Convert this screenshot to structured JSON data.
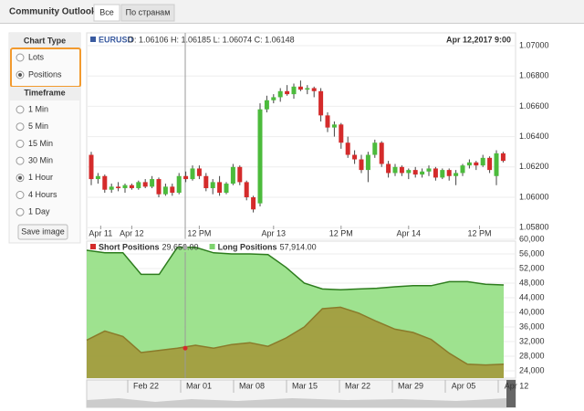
{
  "header": {
    "title": "Community Outlook",
    "tabs": [
      {
        "label": "Все",
        "active": true
      },
      {
        "label": "По странам",
        "active": false
      }
    ]
  },
  "sidebar": {
    "chart_type": {
      "title": "Chart Type",
      "options": [
        {
          "label": "Lots",
          "checked": false
        },
        {
          "label": "Positions",
          "checked": true
        }
      ]
    },
    "timeframe": {
      "title": "Timeframe",
      "options": [
        {
          "label": "1 Min",
          "checked": false
        },
        {
          "label": "5 Min",
          "checked": false
        },
        {
          "label": "15 Min",
          "checked": false
        },
        {
          "label": "30 Min",
          "checked": false
        },
        {
          "label": "1 Hour",
          "checked": true
        },
        {
          "label": "4 Hours",
          "checked": false
        },
        {
          "label": "1 Day",
          "checked": false
        }
      ]
    },
    "button": "Save image"
  },
  "price_chart": {
    "type": "candlestick",
    "symbol": "EURUSD",
    "ohlc": "O: 1.06106 H: 1.06185 L: 1.06074 C: 1.06148",
    "date": "Apr 12,2017 9:00",
    "up_color": "#4cbb3c",
    "down_color": "#d42b2b",
    "ylim": [
      1.0576,
      1.0708
    ],
    "yticks": [
      {
        "value": 1.058,
        "label": "1.05800"
      },
      {
        "value": 1.06,
        "label": "1.06000"
      },
      {
        "value": 1.062,
        "label": "1.06200"
      },
      {
        "value": 1.064,
        "label": "1.06400"
      },
      {
        "value": 1.066,
        "label": "1.06600"
      },
      {
        "value": 1.068,
        "label": "1.06800"
      },
      {
        "value": 1.07,
        "label": "1.07000"
      }
    ],
    "xticks": [
      {
        "value": 1.4,
        "label": "Apr 11"
      },
      {
        "value": 6,
        "label": "Apr 12"
      },
      {
        "value": 16,
        "label": "12 PM"
      },
      {
        "value": 27,
        "label": "Apr 13"
      },
      {
        "value": 37,
        "label": "12 PM"
      },
      {
        "value": 47,
        "label": "Apr 14"
      },
      {
        "value": 57.5,
        "label": "12 PM"
      }
    ],
    "open": [
      1.0628,
      1.0612,
      1.0614,
      1.0605,
      1.0607,
      1.0606,
      1.0608,
      1.0606,
      1.061,
      1.0607,
      1.0612,
      1.0602,
      1.0607,
      1.0603,
      1.0614,
      1.0612,
      1.0619,
      1.0614,
      1.0606,
      1.061,
      1.0603,
      1.0609,
      1.062,
      1.061,
      1.06,
      1.0596,
      1.0658,
      1.0664,
      1.0666,
      1.067,
      1.0668,
      1.0673,
      1.0671,
      1.0672,
      1.067,
      1.0654,
      1.0646,
      1.0648,
      1.0636,
      1.0628,
      1.0625,
      1.0618,
      1.0628,
      1.0636,
      1.0622,
      1.0616,
      1.062,
      1.0616,
      1.0618,
      1.0615,
      1.0617,
      1.0619,
      1.0613,
      1.0618,
      1.0614,
      1.0616,
      1.0621,
      1.0623,
      1.0621,
      1.0626,
      1.0614,
      1.0629
    ],
    "high": [
      1.063,
      1.0616,
      1.0615,
      1.0609,
      1.061,
      1.0609,
      1.0609,
      1.0611,
      1.0612,
      1.0614,
      1.0613,
      1.0609,
      1.0609,
      1.0616,
      1.0617,
      1.0621,
      1.0621,
      1.0616,
      1.0612,
      1.0614,
      1.061,
      1.0622,
      1.0621,
      1.0611,
      1.0601,
      1.0662,
      1.0667,
      1.0668,
      1.0672,
      1.0674,
      1.0675,
      1.0677,
      1.0674,
      1.0673,
      1.0672,
      1.0656,
      1.065,
      1.0649,
      1.064,
      1.0631,
      1.0628,
      1.063,
      1.0638,
      1.0637,
      1.0624,
      1.0622,
      1.0621,
      1.0619,
      1.062,
      1.0619,
      1.0621,
      1.062,
      1.0619,
      1.0619,
      1.0618,
      1.0622,
      1.0625,
      1.0624,
      1.0628,
      1.0627,
      1.0631,
      1.063
    ],
    "low": [
      1.0608,
      1.0609,
      1.0603,
      1.0603,
      1.0604,
      1.0603,
      1.0605,
      1.0605,
      1.0606,
      1.0606,
      1.06,
      1.0601,
      1.0601,
      1.0602,
      1.061,
      1.0611,
      1.0612,
      1.0604,
      1.0602,
      1.0601,
      1.0602,
      1.0608,
      1.0608,
      1.0598,
      1.059,
      1.0594,
      1.0656,
      1.0662,
      1.0663,
      1.0667,
      1.0665,
      1.067,
      1.0668,
      1.0666,
      1.065,
      1.0643,
      1.064,
      1.0632,
      1.0626,
      1.0622,
      1.0616,
      1.061,
      1.0626,
      1.062,
      1.0613,
      1.0614,
      1.0614,
      1.0612,
      1.0613,
      1.0613,
      1.0614,
      1.0611,
      1.0612,
      1.0611,
      1.0608,
      1.0614,
      1.0619,
      1.0618,
      1.062,
      1.0616,
      1.0608,
      1.0623
    ],
    "close": [
      1.0612,
      1.0614,
      1.0605,
      1.0607,
      1.0606,
      1.0608,
      1.0606,
      1.061,
      1.0607,
      1.0612,
      1.0602,
      1.0607,
      1.0603,
      1.0614,
      1.0612,
      1.0619,
      1.0614,
      1.0606,
      1.061,
      1.0603,
      1.0609,
      1.062,
      1.061,
      1.06,
      1.0592,
      1.0658,
      1.0664,
      1.0666,
      1.067,
      1.0668,
      1.0673,
      1.0671,
      1.0672,
      1.067,
      1.0654,
      1.0646,
      1.0648,
      1.0636,
      1.0628,
      1.0625,
      1.0618,
      1.0628,
      1.0636,
      1.0622,
      1.0616,
      1.062,
      1.0616,
      1.0618,
      1.0615,
      1.0617,
      1.0619,
      1.0613,
      1.0618,
      1.0614,
      1.0616,
      1.0621,
      1.0623,
      1.0621,
      1.0626,
      1.0618,
      1.0629,
      1.0624
    ]
  },
  "positions_chart": {
    "type": "area",
    "ylim": [
      22000,
      62000
    ],
    "yticks": [
      {
        "value": 24000,
        "label": "24,000"
      },
      {
        "value": 28000,
        "label": "28,000"
      },
      {
        "value": 32000,
        "label": "32,000"
      },
      {
        "value": 36000,
        "label": "36,000"
      },
      {
        "value": 40000,
        "label": "40,000"
      },
      {
        "value": 44000,
        "label": "44,000"
      },
      {
        "value": 48000,
        "label": "48,000"
      },
      {
        "value": 52000,
        "label": "52,000"
      },
      {
        "value": 56000,
        "label": "56,000"
      },
      {
        "value": 60000,
        "label": "60,000"
      }
    ],
    "series": [
      {
        "name": "Short Positions",
        "readout": "29,656.00",
        "color": "#d42b2b",
        "line": "#8a7a2a",
        "fill": "#a39a3c",
        "values": [
          32400,
          34900,
          33400,
          29000,
          29600,
          30200,
          31000,
          30200,
          31200,
          31700,
          30700,
          33000,
          36000,
          41000,
          41400,
          39800,
          37500,
          35400,
          34500,
          32600,
          28800,
          25800,
          25600,
          25800
        ]
      },
      {
        "name": "Long Positions",
        "readout": "57,914.00",
        "color": "#7ed36e",
        "line": "#2e7d1e",
        "fill": "#93df83",
        "values": [
          57000,
          56300,
          56300,
          50400,
          50400,
          57800,
          57800,
          56300,
          56000,
          56000,
          55800,
          52300,
          48000,
          46400,
          46200,
          46400,
          46600,
          47000,
          47300,
          47300,
          48400,
          48400,
          47700,
          47500
        ]
      }
    ]
  },
  "navigator": {
    "labels": [
      "Feb 22",
      "Mar 01",
      "Mar 08",
      "Mar 15",
      "Mar 22",
      "Mar 29",
      "Apr 05",
      "Apr 12"
    ]
  }
}
